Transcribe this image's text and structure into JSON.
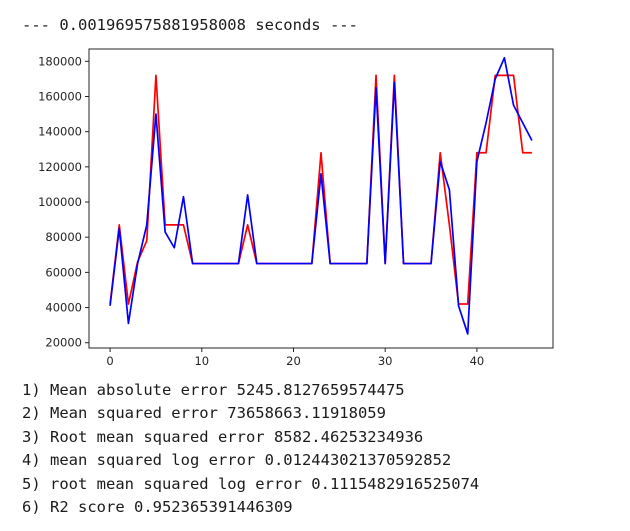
{
  "output": {
    "timing": "--- 0.001969575881958008 seconds ---",
    "metrics": [
      "1) Mean absolute error 5245.8127659574475",
      "2) Mean squared error 73658663.11918059",
      "3) Root mean squared error 8582.46253234936",
      "4) mean squared log error 0.012443021370592852",
      "5) root mean squared log error 0.1115482916525074",
      "6) R2 score 0.952365391446309"
    ]
  },
  "chart_data": {
    "type": "line",
    "title": "",
    "xlabel": "",
    "ylabel": "",
    "xlim": [
      -2.3,
      48.3
    ],
    "ylim": [
      17000,
      187000
    ],
    "xticks": [
      0,
      10,
      20,
      30,
      40
    ],
    "yticks": [
      20000,
      40000,
      60000,
      80000,
      100000,
      120000,
      140000,
      160000,
      180000
    ],
    "grid": false,
    "series": [
      {
        "color": "#ff0000",
        "x": [
          0,
          1,
          2,
          3,
          4,
          5,
          6,
          7,
          8,
          9,
          10,
          11,
          12,
          13,
          14,
          15,
          16,
          17,
          18,
          19,
          20,
          21,
          22,
          23,
          24,
          25,
          26,
          27,
          28,
          29,
          30,
          31,
          32,
          33,
          34,
          35,
          36,
          37,
          38,
          39,
          40,
          41,
          42,
          43,
          44,
          45,
          46
        ],
        "values": [
          42000,
          87000,
          42000,
          66000,
          78000,
          172000,
          87000,
          87000,
          87000,
          65000,
          65000,
          65000,
          65000,
          65000,
          65000,
          87000,
          65000,
          65000,
          65000,
          65000,
          65000,
          65000,
          65000,
          128000,
          65000,
          65000,
          65000,
          65000,
          65000,
          172000,
          65000,
          172000,
          65000,
          65000,
          65000,
          65000,
          128000,
          87000,
          42000,
          42000,
          128000,
          128000,
          172000,
          172000,
          172000,
          128000,
          128000
        ]
      },
      {
        "color": "#0000ff",
        "x": [
          0,
          1,
          2,
          3,
          4,
          5,
          6,
          7,
          8,
          9,
          10,
          11,
          12,
          13,
          14,
          15,
          16,
          17,
          18,
          19,
          20,
          21,
          22,
          23,
          24,
          25,
          26,
          27,
          28,
          29,
          30,
          31,
          32,
          33,
          34,
          35,
          36,
          37,
          38,
          39,
          40,
          41,
          42,
          43,
          44,
          45,
          46
        ],
        "values": [
          41000,
          85000,
          31000,
          65000,
          87000,
          150000,
          83000,
          74000,
          103000,
          65000,
          65000,
          65000,
          65000,
          65000,
          65000,
          104000,
          65000,
          65000,
          65000,
          65000,
          65000,
          65000,
          65000,
          116000,
          65000,
          65000,
          65000,
          65000,
          65000,
          165000,
          65000,
          168000,
          65000,
          65000,
          65000,
          65000,
          123000,
          107000,
          41000,
          25000,
          123000,
          145000,
          170000,
          182000,
          155000,
          145000,
          135000
        ]
      }
    ]
  }
}
